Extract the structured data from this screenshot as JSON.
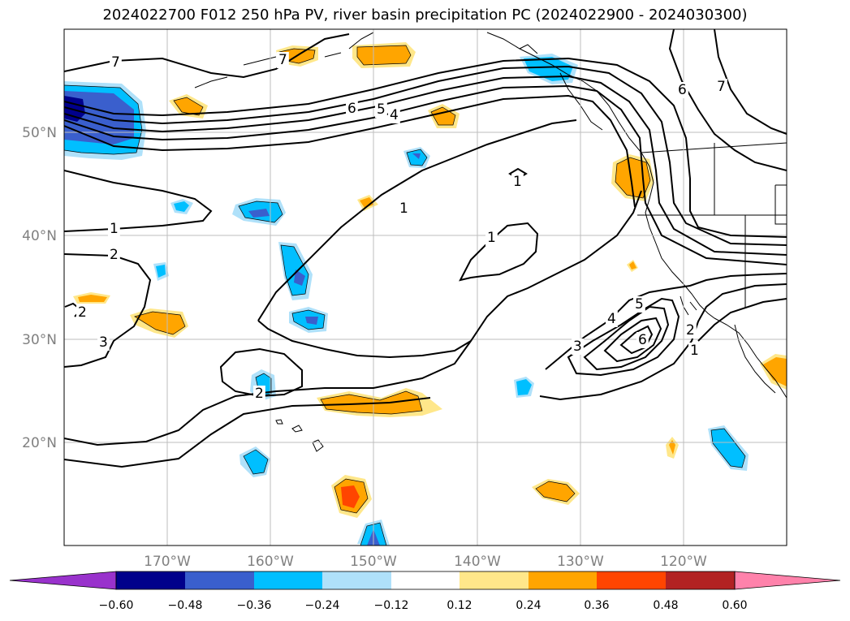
{
  "title": "2024022700 F012 250 hPa PV, river basin precipitation PC (2024022900 - 2024030300)",
  "map": {
    "lon_range": [
      -180,
      -110
    ],
    "lat_range": [
      10,
      60
    ],
    "lon_labels": [
      "170°W",
      "160°W",
      "150°W",
      "140°W",
      "130°W",
      "120°W"
    ],
    "lat_labels": [
      "50°N",
      "40°N",
      "30°N",
      "20°N"
    ]
  },
  "pv_contour_labels": [
    "7",
    "6",
    "5",
    "4",
    "1",
    "2",
    "3",
    "1",
    "1",
    "1",
    "2",
    "3",
    "4",
    "5",
    "6",
    "2",
    "1",
    "6",
    "7",
    "7",
    "2"
  ],
  "colorbar": {
    "levels": [
      -0.6,
      -0.48,
      -0.36,
      -0.24,
      -0.12,
      0.12,
      0.24,
      0.36,
      0.48,
      0.6
    ],
    "tick_labels": [
      "−0.60",
      "−0.48",
      "−0.36",
      "−0.24",
      "−0.12",
      "0.12",
      "0.24",
      "0.36",
      "0.48",
      "0.60"
    ],
    "colors": [
      "#9932cc",
      "#00008b",
      "#3a5fcd",
      "#00bfff",
      "#afe1fa",
      "#ffffff",
      "#ffe78a",
      "#ffa500",
      "#ff4500",
      "#b22222",
      "#ff82ab"
    ]
  }
}
